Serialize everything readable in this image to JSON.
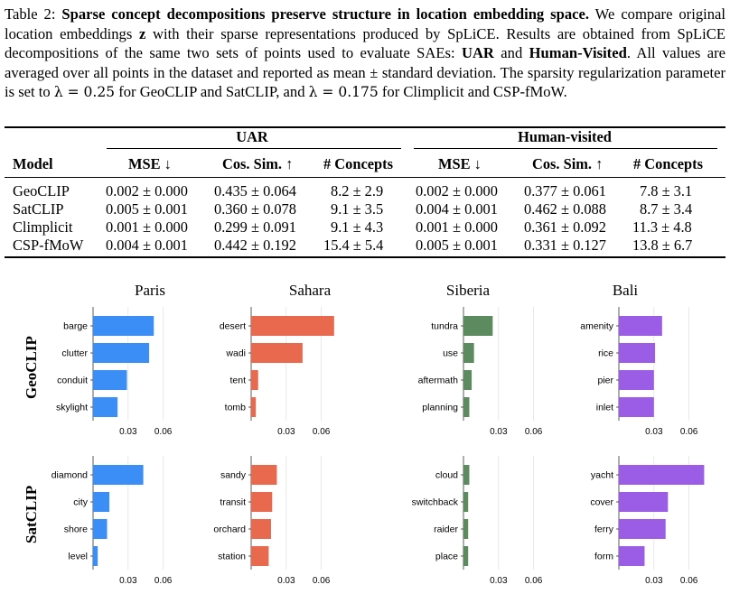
{
  "caption": {
    "label": "Table 2:",
    "title": "Sparse concept decompositions preserve structure in location embedding space.",
    "body1": " We compare original location embeddings ",
    "var_z": "z",
    "body2": " with their sparse representations produced by SpLiCE. Results are obtained from SpLiCE decompositions of the same two sets of points used to evaluate SAEs: ",
    "uar": "UAR",
    "and": " and ",
    "hv": "Human-Visited",
    "body3": ". All values are averaged over all points in the dataset and reported as mean ± standard deviation. The sparsity regularization parameter is set to ",
    "lam1": "λ = 0.25",
    "body4": " for GeoCLIP and SatCLIP, and ",
    "lam2": "λ = 0.175",
    "body5": " for Climplicit and CSP-fMoW."
  },
  "table": {
    "group_uar": "UAR",
    "group_hv": "Human-visited",
    "col_model": "Model",
    "col_mse": "MSE ↓",
    "col_cos": "Cos. Sim. ↑",
    "col_concepts": "# Concepts",
    "rows": [
      {
        "model": "GeoCLIP",
        "uar_mse": "0.002 ± 0.000",
        "uar_cos": "0.435 ± 0.064",
        "uar_con": "8.2 ± 2.9",
        "hv_mse": "0.002 ± 0.000",
        "hv_cos": "0.377 ± 0.061",
        "hv_con": "7.8 ± 3.1"
      },
      {
        "model": "SatCLIP",
        "uar_mse": "0.005 ± 0.001",
        "uar_cos": "0.360 ± 0.078",
        "uar_con": "9.1 ± 3.5",
        "hv_mse": "0.004 ± 0.001",
        "hv_cos": "0.462 ± 0.088",
        "hv_con": "8.7 ± 3.4"
      },
      {
        "model": "Climplicit",
        "uar_mse": "0.001 ± 0.000",
        "uar_cos": "0.299 ± 0.091",
        "uar_con": "9.1 ± 4.3",
        "hv_mse": "0.001 ± 0.000",
        "hv_cos": "0.361 ± 0.092",
        "hv_con": "11.3 ± 4.8"
      },
      {
        "model": "CSP-fMoW",
        "uar_mse": "0.004 ± 0.001",
        "uar_cos": "0.442 ± 0.192",
        "uar_con": "15.4 ± 5.4",
        "hv_mse": "0.005 ± 0.001",
        "hv_cos": "0.331 ± 0.127",
        "hv_con": "13.8 ± 6.7"
      }
    ]
  },
  "figure": {
    "columns": [
      "Paris",
      "Sahara",
      "Siberia",
      "Bali"
    ],
    "rows": [
      "GeoCLIP",
      "SatCLIP"
    ],
    "xticks": [
      "0.03",
      "0.06"
    ]
  },
  "chart_data": [
    {
      "type": "bar",
      "row": "GeoCLIP",
      "column": "Paris",
      "color": "#3a8ef6",
      "categories": [
        "barge",
        "clutter",
        "conduit",
        "skylight"
      ],
      "values": [
        0.052,
        0.048,
        0.029,
        0.021
      ],
      "xticks": [
        0.03,
        0.06
      ],
      "xlim": [
        0,
        0.075
      ]
    },
    {
      "type": "bar",
      "row": "GeoCLIP",
      "column": "Sahara",
      "color": "#e8694d",
      "categories": [
        "desert",
        "wadi",
        "tent",
        "tomb"
      ],
      "values": [
        0.071,
        0.044,
        0.006,
        0.004
      ],
      "xticks": [
        0.03,
        0.06
      ],
      "xlim": [
        0,
        0.075
      ]
    },
    {
      "type": "bar",
      "row": "GeoCLIP",
      "column": "Siberia",
      "color": "#5b8b5e",
      "categories": [
        "tundra",
        "use",
        "aftermath",
        "planning"
      ],
      "values": [
        0.025,
        0.009,
        0.007,
        0.005
      ],
      "xticks": [
        0.03,
        0.06
      ],
      "xlim": [
        0,
        0.075
      ]
    },
    {
      "type": "bar",
      "row": "GeoCLIP",
      "column": "Bali",
      "color": "#9b5de5",
      "categories": [
        "amenity",
        "rice",
        "pier",
        "inlet"
      ],
      "values": [
        0.037,
        0.031,
        0.03,
        0.03
      ],
      "xticks": [
        0.03,
        0.06
      ],
      "xlim": [
        0,
        0.075
      ]
    },
    {
      "type": "bar",
      "row": "SatCLIP",
      "column": "Paris",
      "color": "#3a8ef6",
      "categories": [
        "diamond",
        "city",
        "shore",
        "level"
      ],
      "values": [
        0.043,
        0.014,
        0.012,
        0.004
      ],
      "xticks": [
        0.03,
        0.06
      ],
      "xlim": [
        0,
        0.075
      ]
    },
    {
      "type": "bar",
      "row": "SatCLIP",
      "column": "Sahara",
      "color": "#e8694d",
      "categories": [
        "sandy",
        "transit",
        "orchard",
        "station"
      ],
      "values": [
        0.022,
        0.018,
        0.017,
        0.015
      ],
      "xticks": [
        0.03,
        0.06
      ],
      "xlim": [
        0,
        0.075
      ]
    },
    {
      "type": "bar",
      "row": "SatCLIP",
      "column": "Siberia",
      "color": "#5b8b5e",
      "categories": [
        "cloud",
        "switchback",
        "raider",
        "place"
      ],
      "values": [
        0.005,
        0.004,
        0.004,
        0.004
      ],
      "xticks": [
        0.03,
        0.06
      ],
      "xlim": [
        0,
        0.075
      ]
    },
    {
      "type": "bar",
      "row": "SatCLIP",
      "column": "Bali",
      "color": "#9b5de5",
      "categories": [
        "yacht",
        "cover",
        "ferry",
        "form"
      ],
      "values": [
        0.073,
        0.042,
        0.04,
        0.022
      ],
      "xticks": [
        0.03,
        0.06
      ],
      "xlim": [
        0,
        0.075
      ]
    }
  ]
}
